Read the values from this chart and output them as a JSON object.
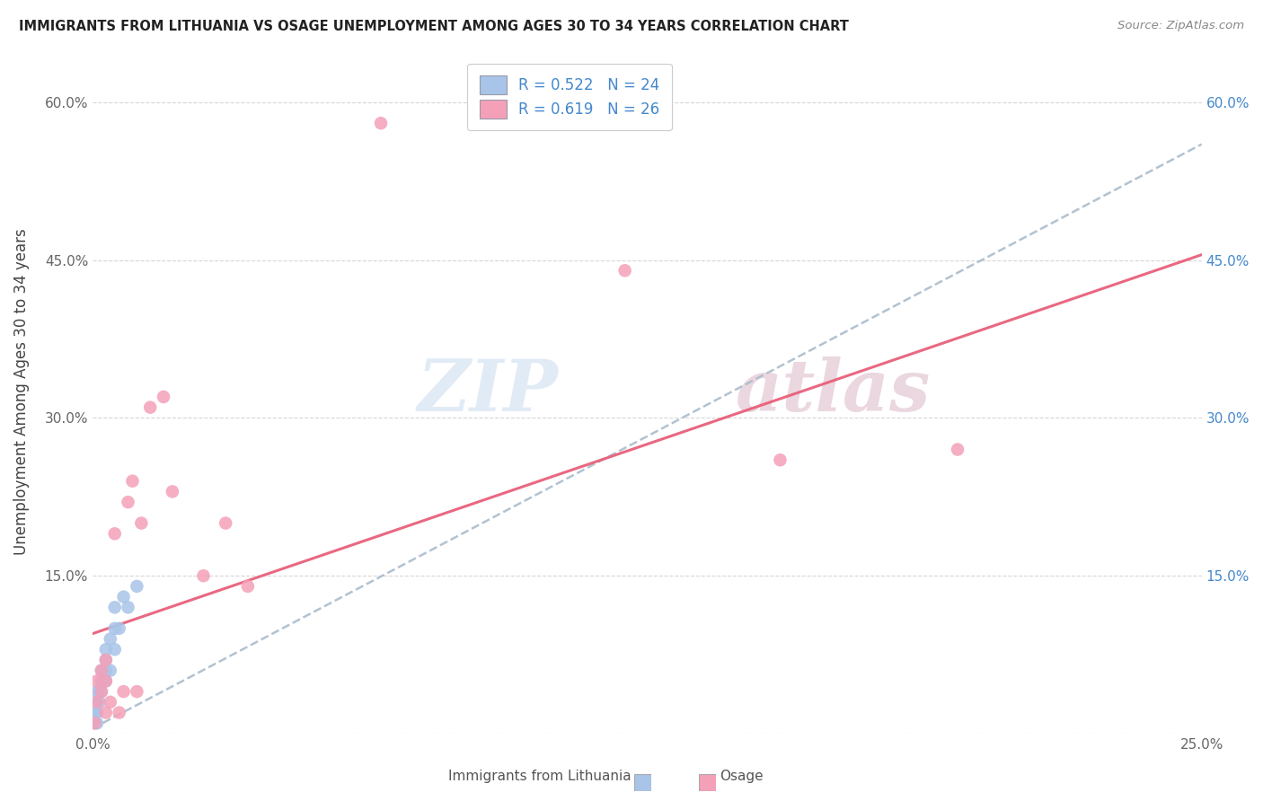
{
  "title": "IMMIGRANTS FROM LITHUANIA VS OSAGE UNEMPLOYMENT AMONG AGES 30 TO 34 YEARS CORRELATION CHART",
  "source": "Source: ZipAtlas.com",
  "ylabel": "Unemployment Among Ages 30 to 34 years",
  "legend_label1": "Immigrants from Lithuania",
  "legend_label2": "Osage",
  "R1": 0.522,
  "N1": 24,
  "R2": 0.619,
  "N2": 26,
  "xlim": [
    0.0,
    0.25
  ],
  "ylim": [
    0.0,
    0.65
  ],
  "xticks": [
    0.0,
    0.05,
    0.1,
    0.15,
    0.2,
    0.25
  ],
  "xtick_labels": [
    "0.0%",
    "",
    "",
    "",
    "",
    "25.0%"
  ],
  "yticks": [
    0.0,
    0.15,
    0.3,
    0.45,
    0.6
  ],
  "ytick_labels": [
    "",
    "15.0%",
    "30.0%",
    "45.0%",
    "60.0%"
  ],
  "color_blue": "#a8c4e8",
  "color_pink": "#f4a0b8",
  "line_blue_color": "#aabccc",
  "line_pink_color": "#e8607a",
  "text_blue": "#4488cc",
  "scatter_blue_x": [
    0.0005,
    0.0005,
    0.001,
    0.001,
    0.001,
    0.001,
    0.0015,
    0.0015,
    0.002,
    0.002,
    0.002,
    0.003,
    0.003,
    0.003,
    0.003,
    0.004,
    0.004,
    0.005,
    0.005,
    0.005,
    0.006,
    0.007,
    0.008,
    0.01
  ],
  "scatter_blue_y": [
    0.01,
    0.02,
    0.01,
    0.02,
    0.03,
    0.04,
    0.03,
    0.04,
    0.04,
    0.05,
    0.06,
    0.05,
    0.06,
    0.07,
    0.08,
    0.06,
    0.09,
    0.08,
    0.1,
    0.12,
    0.1,
    0.13,
    0.12,
    0.14
  ],
  "scatter_pink_x": [
    0.0005,
    0.001,
    0.001,
    0.002,
    0.002,
    0.003,
    0.003,
    0.003,
    0.004,
    0.005,
    0.006,
    0.007,
    0.008,
    0.009,
    0.01,
    0.011,
    0.013,
    0.016,
    0.018,
    0.025,
    0.03,
    0.035,
    0.065,
    0.12,
    0.155,
    0.195
  ],
  "scatter_pink_y": [
    0.01,
    0.03,
    0.05,
    0.04,
    0.06,
    0.02,
    0.05,
    0.07,
    0.03,
    0.19,
    0.02,
    0.04,
    0.22,
    0.24,
    0.04,
    0.2,
    0.31,
    0.32,
    0.23,
    0.15,
    0.2,
    0.14,
    0.58,
    0.44,
    0.26,
    0.27
  ],
  "blue_line_x0": 0.0,
  "blue_line_y0": 0.005,
  "blue_line_x1": 0.25,
  "blue_line_y1": 0.56,
  "pink_line_x0": 0.0,
  "pink_line_y0": 0.095,
  "pink_line_x1": 0.25,
  "pink_line_y1": 0.455
}
